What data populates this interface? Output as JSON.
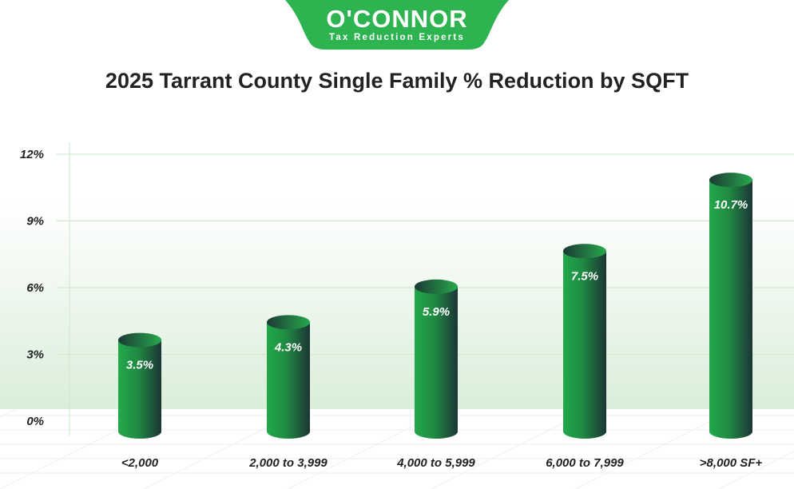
{
  "logo": {
    "name": "O'CONNOR",
    "tagline": "Tax Reduction Experts"
  },
  "chart_data": {
    "type": "bar",
    "title": "2025 Tarrant County Single Family % Reduction by SQFT",
    "categories": [
      "<2,000",
      "2,000 to 3,999",
      "4,000 to 5,999",
      "6,000 to 7,999",
      ">8,000 SF+"
    ],
    "values": [
      3.5,
      4.3,
      5.9,
      7.5,
      10.7
    ],
    "data_labels": [
      "3.5%",
      "4.3%",
      "5.9%",
      "7.5%",
      "10.7%"
    ],
    "yticks": [
      "0%",
      "3%",
      "6%",
      "9%",
      "12%"
    ],
    "ylim": [
      0,
      12
    ],
    "grid": true,
    "xlabel": "",
    "ylabel": "",
    "colors": {
      "bar_light": "#22a94a",
      "bar_dark": "#1c3535",
      "grid": "#cfe6cf",
      "logo": "#2db34f"
    }
  }
}
